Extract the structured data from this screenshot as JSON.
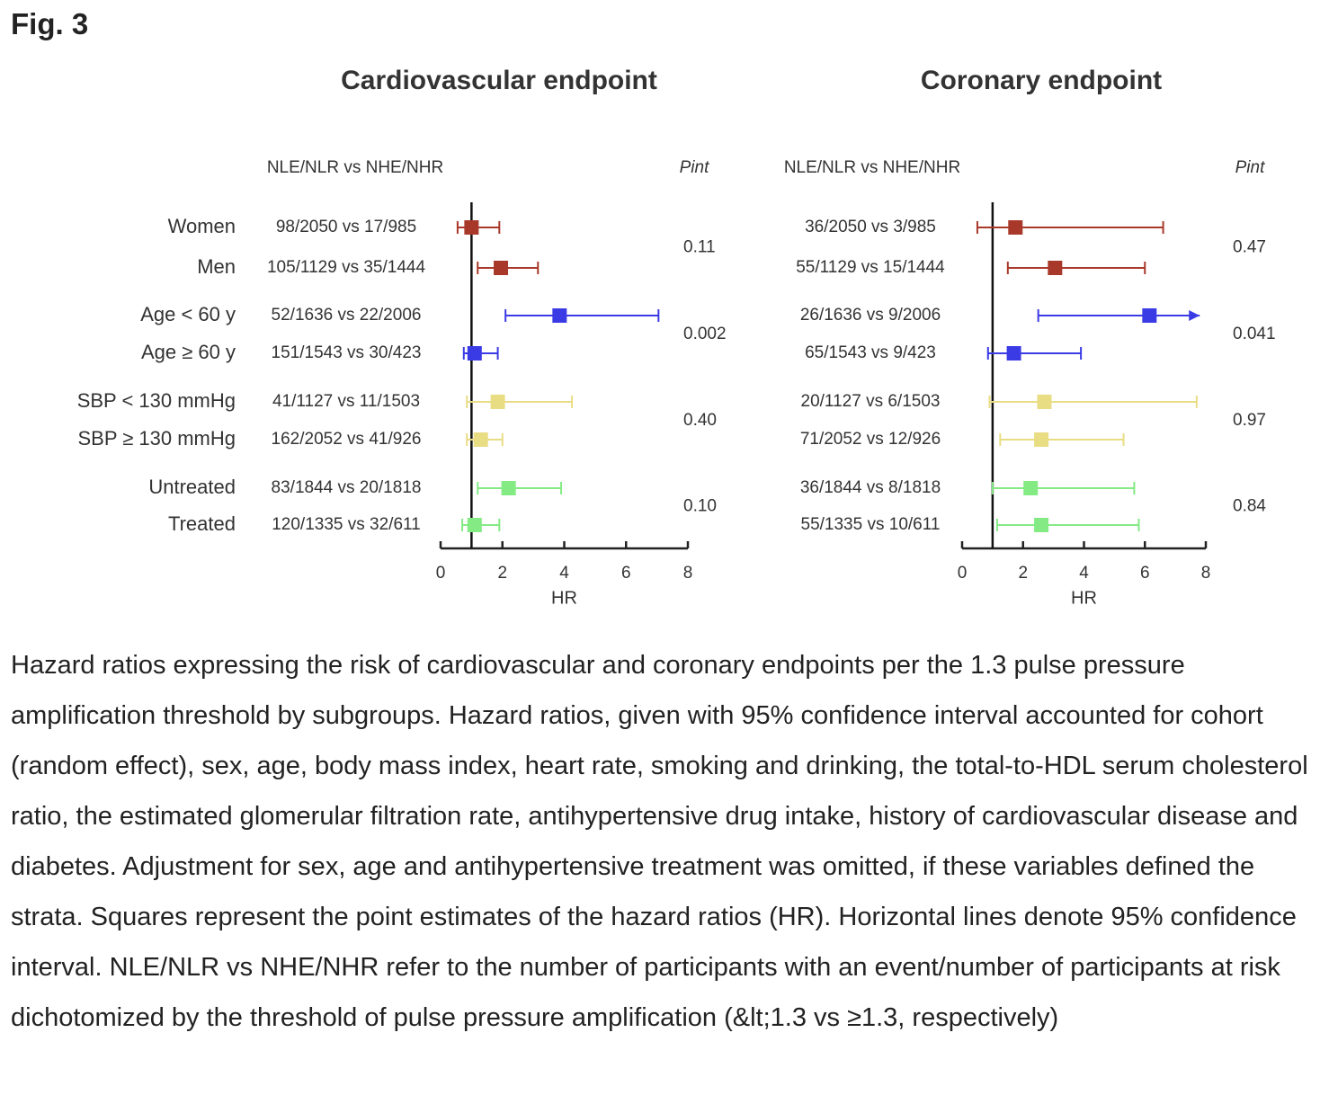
{
  "heading": "Fig. 3",
  "chart_data": [
    {
      "type": "forest",
      "title": "Cardiovascular endpoint",
      "column_header": "NLE/NLR vs NHE/NHR",
      "pint_header": "Pint",
      "categories": [
        "Women",
        "Men",
        "Age < 60 y",
        "Age ≥ 60 y",
        "SBP < 130 mmHg",
        "SBP  ≥ 130 mmHg",
        "Untreated",
        "Treated"
      ],
      "counts": [
        "98/2050 vs 17/985",
        "105/1129 vs 35/1444",
        "52/1636 vs 22/2006",
        "151/1543 vs 30/423",
        "41/1127 vs 11/1503",
        "162/2052 vs 41/926",
        "83/1844 vs 20/1818",
        "120/1335 vs 32/611"
      ],
      "values": [
        1.0,
        1.95,
        3.85,
        1.1,
        1.85,
        1.3,
        2.2,
        1.1
      ],
      "ci_low": [
        0.55,
        1.2,
        2.1,
        0.75,
        0.85,
        0.85,
        1.2,
        0.7
      ],
      "ci_high": [
        1.9,
        3.15,
        7.05,
        1.85,
        4.25,
        2.0,
        3.9,
        1.9
      ],
      "colors": [
        "#a8382a",
        "#a8382a",
        "#3b3be6",
        "#3b3be6",
        "#e9dd84",
        "#e9dd84",
        "#84ea84",
        "#84ea84"
      ],
      "pint": [
        "0.11",
        "0.002",
        "0.40",
        "0.10"
      ],
      "xlim": [
        0,
        8
      ],
      "xticks": [
        0,
        2,
        4,
        6,
        8
      ],
      "xlabel": "HR",
      "reference_line": 1
    },
    {
      "type": "forest",
      "title": "Coronary endpoint",
      "column_header": "NLE/NLR vs NHE/NHR",
      "pint_header": "Pint",
      "counts": [
        "36/2050 vs 3/985",
        "55/1129 vs 15/1444",
        "26/1636 vs 9/2006",
        "65/1543 vs 9/423",
        "20/1127 vs 6/1503",
        "71/2052 vs 12/926",
        "36/1844 vs 8/1818",
        "55/1335 vs 10/611"
      ],
      "values": [
        1.75,
        3.05,
        6.15,
        1.7,
        2.7,
        2.6,
        2.25,
        2.6
      ],
      "ci_low": [
        0.5,
        1.5,
        2.5,
        0.85,
        0.9,
        1.25,
        1.0,
        1.15
      ],
      "ci_high": [
        6.6,
        6.0,
        7.8,
        3.9,
        7.7,
        5.3,
        5.65,
        5.8
      ],
      "arrows": [
        false,
        false,
        true,
        false,
        false,
        false,
        false,
        false
      ],
      "colors": [
        "#a8382a",
        "#a8382a",
        "#3b3be6",
        "#3b3be6",
        "#e9dd84",
        "#e9dd84",
        "#84ea84",
        "#84ea84"
      ],
      "pint": [
        "0.47",
        "0.041",
        "0.97",
        "0.84"
      ],
      "xlim": [
        0,
        8
      ],
      "xticks": [
        0,
        2,
        4,
        6,
        8
      ],
      "xlabel": "HR",
      "reference_line": 1
    }
  ],
  "caption": "Hazard ratios expressing the risk of cardiovascular and coronary endpoints per the 1.3 pulse pressure amplification threshold by subgroups. Hazard ratios, given with 95% confidence interval accounted for cohort (random effect), sex, age, body mass index, heart rate, smoking and drinking, the total-to-HDL serum cholesterol ratio, the estimated glomerular filtration rate, antihypertensive drug intake, history of cardiovascular disease and diabetes. Adjustment for sex, age and antihypertensive treatment was omitted, if these variables defined the strata. Squares represent the point estimates of the hazard ratios (HR). Horizontal lines denote 95% confidence interval. NLE/NLR vs NHE/NHR refer to the number of participants with an event/number of participants at risk dichotomized by the threshold of pulse pressure amplification (&lt;1.3 vs ≥1.3, respectively)"
}
